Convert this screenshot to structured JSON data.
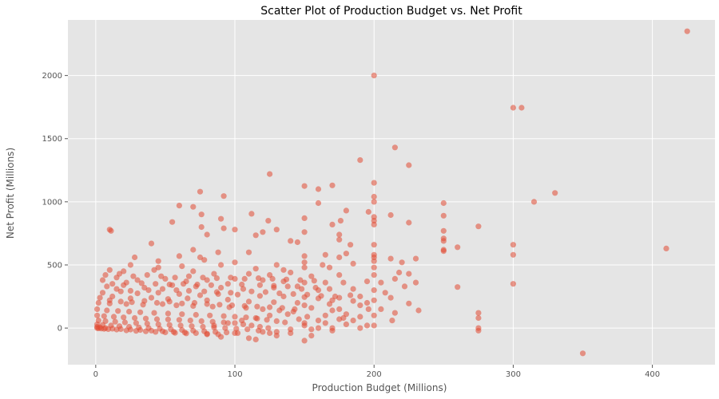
{
  "colors": {
    "panel_bg": "#E5E5E5",
    "grid": "#FFFFFF",
    "point": "#E24A33",
    "text": "#555555",
    "title": "#000000"
  },
  "chart_data": {
    "type": "scatter",
    "title": "Scatter Plot of Production Budget vs. Net Profit",
    "xlabel": "Production Budget (Millions)",
    "ylabel": "Net Profit (Millions)",
    "xlim": [
      -20,
      445
    ],
    "ylim": [
      -290,
      2440
    ],
    "xticks": [
      0,
      100,
      200,
      300,
      400
    ],
    "yticks": [
      0,
      500,
      1000,
      1500,
      2000
    ],
    "grid": true,
    "point_alpha": 0.55,
    "points": [
      [
        425,
        2350
      ],
      [
        200,
        2000
      ],
      [
        300,
        1745
      ],
      [
        306,
        1745
      ],
      [
        215,
        1430
      ],
      [
        190,
        1330
      ],
      [
        225,
        1290
      ],
      [
        125,
        1220
      ],
      [
        200,
        1150
      ],
      [
        150,
        1125
      ],
      [
        170,
        1130
      ],
      [
        330,
        1070
      ],
      [
        75,
        1080
      ],
      [
        92,
        1045
      ],
      [
        200,
        1040
      ],
      [
        160,
        1100
      ],
      [
        200,
        1000
      ],
      [
        160,
        990
      ],
      [
        250,
        990
      ],
      [
        315,
        1000
      ],
      [
        60,
        970
      ],
      [
        70,
        960
      ],
      [
        76,
        900
      ],
      [
        112,
        905
      ],
      [
        180,
        930
      ],
      [
        196,
        920
      ],
      [
        200,
        880
      ],
      [
        212,
        895
      ],
      [
        250,
        890
      ],
      [
        150,
        870
      ],
      [
        90,
        865
      ],
      [
        124,
        850
      ],
      [
        176,
        850
      ],
      [
        200,
        850
      ],
      [
        225,
        835
      ],
      [
        55,
        840
      ],
      [
        170,
        820
      ],
      [
        200,
        820
      ],
      [
        275,
        805
      ],
      [
        76,
        800
      ],
      [
        92,
        790
      ],
      [
        100,
        780
      ],
      [
        10,
        780
      ],
      [
        11,
        770
      ],
      [
        130,
        780
      ],
      [
        120,
        760
      ],
      [
        250,
        770
      ],
      [
        150,
        760
      ],
      [
        80,
        740
      ],
      [
        115,
        735
      ],
      [
        175,
        740
      ],
      [
        250,
        710
      ],
      [
        250,
        690
      ],
      [
        40,
        670
      ],
      [
        140,
        690
      ],
      [
        145,
        680
      ],
      [
        175,
        700
      ],
      [
        183,
        660
      ],
      [
        200,
        660
      ],
      [
        300,
        660
      ],
      [
        410,
        630
      ],
      [
        260,
        640
      ],
      [
        250,
        620
      ],
      [
        250,
        610
      ],
      [
        70,
        620
      ],
      [
        88,
        600
      ],
      [
        110,
        600
      ],
      [
        60,
        570
      ],
      [
        75,
        560
      ],
      [
        78,
        540
      ],
      [
        150,
        570
      ],
      [
        165,
        580
      ],
      [
        175,
        560
      ],
      [
        180,
        590
      ],
      [
        200,
        580
      ],
      [
        200,
        560
      ],
      [
        212,
        550
      ],
      [
        230,
        550
      ],
      [
        300,
        580
      ],
      [
        28,
        560
      ],
      [
        45,
        530
      ],
      [
        100,
        520
      ],
      [
        130,
        500
      ],
      [
        150,
        520
      ],
      [
        163,
        500
      ],
      [
        185,
        510
      ],
      [
        200,
        530
      ],
      [
        220,
        520
      ],
      [
        25,
        500
      ],
      [
        45,
        480
      ],
      [
        62,
        490
      ],
      [
        90,
        500
      ],
      [
        115,
        470
      ],
      [
        135,
        460
      ],
      [
        150,
        480
      ],
      [
        168,
        480
      ],
      [
        200,
        480
      ],
      [
        218,
        440
      ],
      [
        225,
        430
      ],
      [
        10,
        460
      ],
      [
        20,
        450
      ],
      [
        42,
        460
      ],
      [
        70,
        450
      ],
      [
        85,
        430
      ],
      [
        110,
        430
      ],
      [
        125,
        420
      ],
      [
        140,
        440
      ],
      [
        155,
        410
      ],
      [
        175,
        420
      ],
      [
        200,
        420
      ],
      [
        215,
        390
      ],
      [
        230,
        360
      ],
      [
        300,
        350
      ],
      [
        260,
        325
      ],
      [
        5,
        380
      ],
      [
        15,
        400
      ],
      [
        30,
        380
      ],
      [
        50,
        390
      ],
      [
        65,
        370
      ],
      [
        80,
        380
      ],
      [
        100,
        390
      ],
      [
        120,
        380
      ],
      [
        135,
        370
      ],
      [
        150,
        360
      ],
      [
        165,
        360
      ],
      [
        178,
        360
      ],
      [
        195,
        370
      ],
      [
        205,
        360
      ],
      [
        222,
        330
      ],
      [
        8,
        330
      ],
      [
        20,
        340
      ],
      [
        35,
        320
      ],
      [
        55,
        340
      ],
      [
        72,
        330
      ],
      [
        90,
        320
      ],
      [
        106,
        310
      ],
      [
        128,
        320
      ],
      [
        145,
        330
      ],
      [
        160,
        300
      ],
      [
        185,
        310
      ],
      [
        200,
        300
      ],
      [
        208,
        280
      ],
      [
        183,
        260
      ],
      [
        190,
        250
      ],
      [
        175,
        240
      ],
      [
        200,
        220
      ],
      [
        212,
        240
      ],
      [
        225,
        195
      ],
      [
        232,
        140
      ],
      [
        205,
        150
      ],
      [
        200,
        100
      ],
      [
        215,
        120
      ],
      [
        5,
        280
      ],
      [
        18,
        290
      ],
      [
        30,
        275
      ],
      [
        45,
        280
      ],
      [
        60,
        270
      ],
      [
        75,
        260
      ],
      [
        88,
        270
      ],
      [
        102,
        265
      ],
      [
        118,
        255
      ],
      [
        135,
        250
      ],
      [
        150,
        245
      ],
      [
        160,
        235
      ],
      [
        170,
        220
      ],
      [
        185,
        215
      ],
      [
        195,
        200
      ],
      [
        196,
        150
      ],
      [
        190,
        180
      ],
      [
        175,
        150
      ],
      [
        168,
        190
      ],
      [
        3,
        240
      ],
      [
        12,
        250
      ],
      [
        25,
        235
      ],
      [
        40,
        240
      ],
      [
        52,
        230
      ],
      [
        66,
        235
      ],
      [
        80,
        220
      ],
      [
        95,
        225
      ],
      [
        110,
        210
      ],
      [
        128,
        205
      ],
      [
        145,
        200
      ],
      [
        150,
        180
      ],
      [
        155,
        160
      ],
      [
        170,
        140
      ],
      [
        180,
        110
      ],
      [
        190,
        90
      ],
      [
        175,
        70
      ],
      [
        165,
        40
      ],
      [
        150,
        20
      ],
      [
        160,
        0
      ],
      [
        170,
        -20
      ],
      [
        150,
        -100
      ],
      [
        155,
        -60
      ],
      [
        140,
        -40
      ],
      [
        130,
        -30
      ],
      [
        2,
        200
      ],
      [
        10,
        195
      ],
      [
        22,
        190
      ],
      [
        34,
        185
      ],
      [
        48,
        190
      ],
      [
        58,
        180
      ],
      [
        70,
        175
      ],
      [
        84,
        170
      ],
      [
        96,
        165
      ],
      [
        108,
        160
      ],
      [
        120,
        150
      ],
      [
        132,
        140
      ],
      [
        142,
        130
      ],
      [
        138,
        110
      ],
      [
        125,
        100
      ],
      [
        115,
        80
      ],
      [
        105,
        60
      ],
      [
        95,
        40
      ],
      [
        85,
        20
      ],
      [
        100,
        -40
      ],
      [
        110,
        -80
      ],
      [
        90,
        -70
      ],
      [
        80,
        -50
      ],
      [
        115,
        -90
      ],
      [
        120,
        -30
      ],
      [
        130,
        -60
      ],
      [
        140,
        -10
      ],
      [
        125,
        -40
      ],
      [
        1,
        150
      ],
      [
        8,
        140
      ],
      [
        16,
        135
      ],
      [
        24,
        130
      ],
      [
        32,
        125
      ],
      [
        42,
        120
      ],
      [
        52,
        115
      ],
      [
        62,
        110
      ],
      [
        72,
        105
      ],
      [
        82,
        100
      ],
      [
        92,
        95
      ],
      [
        100,
        90
      ],
      [
        108,
        85
      ],
      [
        116,
        75
      ],
      [
        123,
        65
      ],
      [
        130,
        55
      ],
      [
        136,
        45
      ],
      [
        146,
        70
      ],
      [
        152,
        90
      ],
      [
        165,
        100
      ],
      [
        178,
        80
      ],
      [
        185,
        60
      ],
      [
        160,
        60
      ],
      [
        150,
        40
      ],
      [
        1,
        100
      ],
      [
        6,
        95
      ],
      [
        13,
        90
      ],
      [
        20,
        85
      ],
      [
        28,
        80
      ],
      [
        36,
        75
      ],
      [
        44,
        70
      ],
      [
        52,
        68
      ],
      [
        60,
        65
      ],
      [
        68,
        60
      ],
      [
        76,
        55
      ],
      [
        84,
        50
      ],
      [
        92,
        45
      ],
      [
        100,
        40
      ],
      [
        106,
        30
      ],
      [
        112,
        20
      ],
      [
        118,
        10
      ],
      [
        124,
        0
      ],
      [
        2,
        60
      ],
      [
        7,
        55
      ],
      [
        14,
        50
      ],
      [
        21,
        45
      ],
      [
        29,
        40
      ],
      [
        37,
        35
      ],
      [
        45,
        30
      ],
      [
        53,
        25
      ],
      [
        61,
        20
      ],
      [
        69,
        15
      ],
      [
        77,
        10
      ],
      [
        85,
        5
      ],
      [
        93,
        0
      ],
      [
        101,
        -5
      ],
      [
        109,
        -10
      ],
      [
        117,
        -20
      ],
      [
        1,
        30
      ],
      [
        5,
        25
      ],
      [
        11,
        20
      ],
      [
        17,
        15
      ],
      [
        24,
        10
      ],
      [
        31,
        5
      ],
      [
        38,
        0
      ],
      [
        46,
        -5
      ],
      [
        54,
        -10
      ],
      [
        62,
        -15
      ],
      [
        70,
        -20
      ],
      [
        78,
        -25
      ],
      [
        86,
        -30
      ],
      [
        94,
        -35
      ],
      [
        102,
        -40
      ],
      [
        1,
        10
      ],
      [
        3,
        5
      ],
      [
        7,
        0
      ],
      [
        12,
        -5
      ],
      [
        18,
        -8
      ],
      [
        25,
        -12
      ],
      [
        32,
        -15
      ],
      [
        40,
        -20
      ],
      [
        48,
        -25
      ],
      [
        56,
        -30
      ],
      [
        64,
        -35
      ],
      [
        72,
        -40
      ],
      [
        80,
        -45
      ],
      [
        88,
        -50
      ],
      [
        1,
        0
      ],
      [
        2,
        -2
      ],
      [
        4,
        -4
      ],
      [
        6,
        -6
      ],
      [
        9,
        -8
      ],
      [
        15,
        -12
      ],
      [
        22,
        -18
      ],
      [
        29,
        -22
      ],
      [
        36,
        -26
      ],
      [
        43,
        -30
      ],
      [
        50,
        -34
      ],
      [
        57,
        -38
      ],
      [
        65,
        -42
      ],
      [
        200,
        20
      ],
      [
        213,
        60
      ],
      [
        170,
        0
      ],
      [
        155,
        -10
      ],
      [
        190,
        0
      ],
      [
        180,
        30
      ],
      [
        275,
        120
      ],
      [
        275,
        80
      ],
      [
        275,
        0
      ],
      [
        275,
        -20
      ],
      [
        350,
        -200
      ],
      [
        195,
        20
      ],
      [
        10,
        220
      ],
      [
        18,
        210
      ],
      [
        26,
        205
      ],
      [
        35,
        215
      ],
      [
        44,
        200
      ],
      [
        53,
        210
      ],
      [
        62,
        195
      ],
      [
        71,
        200
      ],
      [
        80,
        190
      ],
      [
        89,
        185
      ],
      [
        98,
        180
      ],
      [
        107,
        175
      ],
      [
        116,
        170
      ],
      [
        125,
        165
      ],
      [
        134,
        160
      ],
      [
        143,
        150
      ],
      [
        15,
        310
      ],
      [
        25,
        295
      ],
      [
        38,
        300
      ],
      [
        48,
        310
      ],
      [
        58,
        300
      ],
      [
        67,
        295
      ],
      [
        78,
        290
      ],
      [
        87,
        285
      ],
      [
        97,
        280
      ],
      [
        112,
        290
      ],
      [
        122,
        285
      ],
      [
        132,
        275
      ],
      [
        142,
        270
      ],
      [
        152,
        265
      ],
      [
        162,
        255
      ],
      [
        172,
        250
      ],
      [
        12,
        350
      ],
      [
        22,
        360
      ],
      [
        33,
        355
      ],
      [
        43,
        350
      ],
      [
        53,
        345
      ],
      [
        63,
        350
      ],
      [
        73,
        345
      ],
      [
        83,
        340
      ],
      [
        95,
        350
      ],
      [
        105,
        345
      ],
      [
        118,
        340
      ],
      [
        128,
        335
      ],
      [
        138,
        330
      ],
      [
        148,
        310
      ],
      [
        158,
        320
      ],
      [
        168,
        310
      ],
      [
        7,
        420
      ],
      [
        17,
        430
      ],
      [
        27,
        410
      ],
      [
        37,
        420
      ],
      [
        47,
        410
      ],
      [
        57,
        400
      ],
      [
        67,
        410
      ],
      [
        77,
        400
      ],
      [
        87,
        395
      ],
      [
        97,
        400
      ],
      [
        107,
        390
      ],
      [
        117,
        395
      ],
      [
        127,
        390
      ],
      [
        137,
        385
      ],
      [
        147,
        380
      ],
      [
        157,
        375
      ]
    ]
  }
}
